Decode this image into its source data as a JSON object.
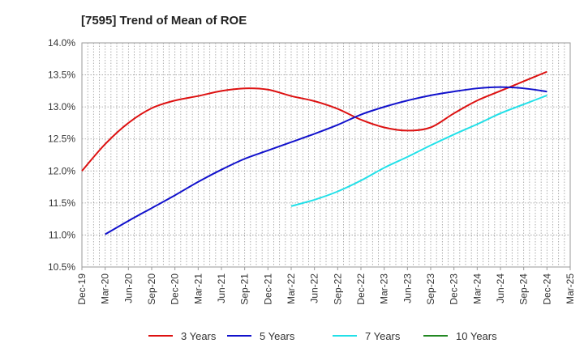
{
  "chart_data": {
    "type": "line",
    "title": "[7595]  Trend of Mean of ROE",
    "xlabel": "",
    "ylabel": "",
    "x_categories": [
      "Dec-19",
      "Mar-20",
      "Jun-20",
      "Sep-20",
      "Dec-20",
      "Mar-21",
      "Jun-21",
      "Sep-21",
      "Dec-21",
      "Mar-22",
      "Jun-22",
      "Sep-22",
      "Dec-22",
      "Mar-23",
      "Jun-23",
      "Sep-23",
      "Dec-23",
      "Mar-24",
      "Jun-24",
      "Sep-24",
      "Dec-24",
      "Mar-25"
    ],
    "y_ticks": [
      "14.0%",
      "13.5%",
      "13.0%",
      "12.5%",
      "12.0%",
      "11.5%",
      "11.0%",
      "10.5%"
    ],
    "y_tick_values": [
      14.0,
      13.5,
      13.0,
      12.5,
      12.0,
      11.5,
      11.0,
      10.5
    ],
    "ylim": [
      10.5,
      14.0
    ],
    "grid": true,
    "legend_position": "bottom",
    "series": [
      {
        "name": "3 Years",
        "color": "#dd1111",
        "values": [
          12.0,
          12.42,
          12.75,
          12.98,
          13.1,
          13.17,
          13.25,
          13.29,
          13.27,
          13.17,
          13.09,
          12.97,
          12.8,
          12.68,
          12.63,
          12.68,
          12.9,
          13.1,
          13.25,
          13.4,
          13.55,
          null
        ]
      },
      {
        "name": "5 Years",
        "color": "#1111cc",
        "values": [
          null,
          11.01,
          11.22,
          11.42,
          11.62,
          11.83,
          12.02,
          12.19,
          12.32,
          12.45,
          12.58,
          12.72,
          12.88,
          13.0,
          13.1,
          13.18,
          13.24,
          13.29,
          13.31,
          13.29,
          13.24,
          null
        ]
      },
      {
        "name": "7 Years",
        "color": "#22e0e8",
        "values": [
          null,
          null,
          null,
          null,
          null,
          null,
          null,
          null,
          null,
          11.45,
          11.55,
          11.68,
          11.85,
          12.05,
          12.22,
          12.4,
          12.57,
          12.73,
          12.9,
          13.04,
          13.18,
          null
        ]
      },
      {
        "name": "10 Years",
        "color": "#228822",
        "values": [
          null,
          null,
          null,
          null,
          null,
          null,
          null,
          null,
          null,
          null,
          null,
          null,
          null,
          null,
          null,
          null,
          null,
          null,
          null,
          null,
          null,
          null
        ]
      }
    ]
  }
}
